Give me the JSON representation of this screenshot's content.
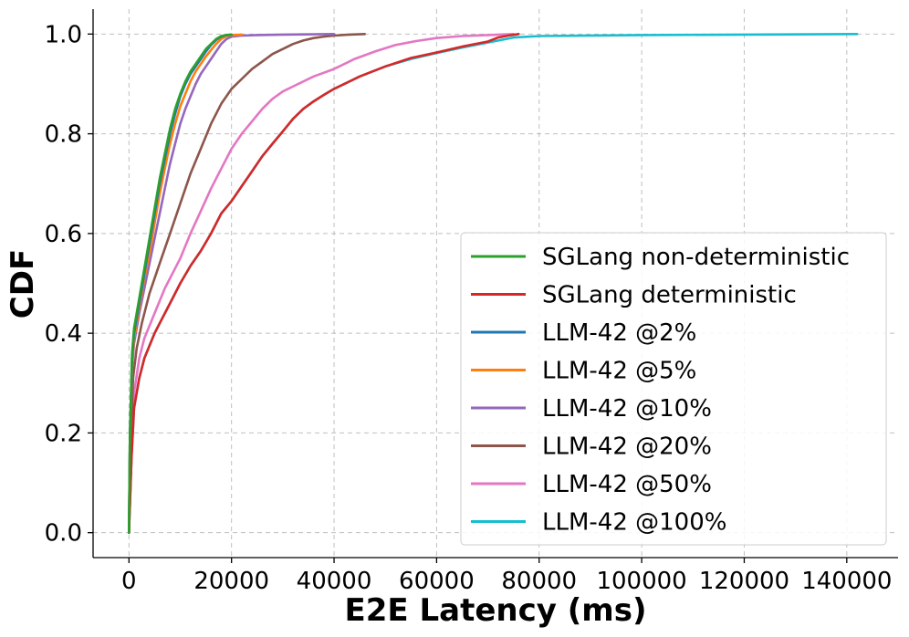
{
  "chart_data": {
    "type": "line",
    "title": "",
    "xlabel": "E2E Latency (ms)",
    "ylabel": "CDF",
    "xlim": [
      -7000,
      150000
    ],
    "ylim": [
      -0.05,
      1.05
    ],
    "xticks": [
      0,
      20000,
      40000,
      60000,
      80000,
      100000,
      120000,
      140000
    ],
    "xtick_labels": [
      "0",
      "20000",
      "40000",
      "60000",
      "80000",
      "100000",
      "120000",
      "140000"
    ],
    "yticks": [
      0.0,
      0.2,
      0.4,
      0.6,
      0.8,
      1.0
    ],
    "ytick_labels": [
      "0.0",
      "0.2",
      "0.4",
      "0.6",
      "0.8",
      "1.0"
    ],
    "grid": true,
    "legend_position": "lower-right",
    "series": [
      {
        "name": "SGLang non-deterministic",
        "color": "#2ca02c",
        "x": [
          0,
          200,
          600,
          1000,
          2000,
          3000,
          4000,
          5000,
          6000,
          7000,
          8000,
          9000,
          10000,
          11000,
          12000,
          13000,
          14000,
          15000,
          16000,
          17000,
          18000,
          19000,
          20000
        ],
        "y": [
          0,
          0.2,
          0.36,
          0.41,
          0.47,
          0.53,
          0.59,
          0.65,
          0.71,
          0.76,
          0.81,
          0.85,
          0.88,
          0.905,
          0.925,
          0.94,
          0.955,
          0.97,
          0.98,
          0.99,
          0.996,
          0.998,
          0.999
        ]
      },
      {
        "name": "SGLang deterministic",
        "color": "#d62728",
        "x": [
          0,
          500,
          1000,
          2000,
          3000,
          4000,
          5000,
          6000,
          8000,
          10000,
          12000,
          14000,
          16000,
          18000,
          20000,
          22000,
          24000,
          26000,
          28000,
          30000,
          32000,
          34000,
          36000,
          38000,
          40000,
          45000,
          50000,
          55000,
          60000,
          65000,
          70000,
          72000,
          74000,
          76000
        ],
        "y": [
          0,
          0.15,
          0.25,
          0.31,
          0.35,
          0.375,
          0.4,
          0.42,
          0.46,
          0.5,
          0.535,
          0.565,
          0.6,
          0.64,
          0.665,
          0.695,
          0.725,
          0.755,
          0.78,
          0.805,
          0.83,
          0.85,
          0.865,
          0.878,
          0.89,
          0.915,
          0.935,
          0.952,
          0.963,
          0.975,
          0.985,
          0.993,
          0.997,
          1.0
        ]
      },
      {
        "name": "LLM-42 @2%",
        "color": "#1f77b4",
        "x": [
          0,
          200,
          600,
          1000,
          2000,
          3000,
          4000,
          5000,
          6000,
          7000,
          8000,
          9000,
          10000,
          11000,
          12000,
          13000,
          14000,
          15000,
          16000,
          17000,
          18000,
          19000,
          20000
        ],
        "y": [
          0,
          0.2,
          0.35,
          0.4,
          0.46,
          0.52,
          0.58,
          0.64,
          0.7,
          0.75,
          0.8,
          0.84,
          0.875,
          0.9,
          0.92,
          0.935,
          0.95,
          0.965,
          0.978,
          0.988,
          0.995,
          0.998,
          0.999
        ]
      },
      {
        "name": "LLM-42 @5%",
        "color": "#ff7f0e",
        "x": [
          0,
          200,
          600,
          1000,
          2000,
          3000,
          4000,
          5000,
          6000,
          7000,
          8000,
          9000,
          10000,
          11000,
          12000,
          13000,
          14000,
          15000,
          16000,
          17000,
          18000,
          19000,
          20000,
          22000
        ],
        "y": [
          0,
          0.19,
          0.34,
          0.39,
          0.45,
          0.51,
          0.56,
          0.62,
          0.68,
          0.73,
          0.78,
          0.82,
          0.855,
          0.88,
          0.905,
          0.925,
          0.94,
          0.955,
          0.968,
          0.98,
          0.99,
          0.996,
          0.998,
          0.999
        ]
      },
      {
        "name": "LLM-42 @10%",
        "color": "#9467bd",
        "x": [
          0,
          200,
          600,
          1000,
          2000,
          3000,
          4000,
          5000,
          6000,
          7000,
          8000,
          9000,
          10000,
          11000,
          12000,
          13000,
          14000,
          15000,
          16000,
          17000,
          18000,
          19000,
          20000,
          22000,
          25000,
          30000,
          40000
        ],
        "y": [
          0,
          0.18,
          0.33,
          0.38,
          0.44,
          0.49,
          0.54,
          0.59,
          0.64,
          0.69,
          0.74,
          0.78,
          0.82,
          0.85,
          0.875,
          0.9,
          0.92,
          0.935,
          0.95,
          0.965,
          0.98,
          0.99,
          0.995,
          0.997,
          0.998,
          0.999,
          1.0
        ]
      },
      {
        "name": "LLM-42 @20%",
        "color": "#8c564b",
        "x": [
          0,
          300,
          800,
          1500,
          2500,
          4000,
          6000,
          8000,
          10000,
          12000,
          14000,
          16000,
          18000,
          20000,
          22000,
          24000,
          26000,
          28000,
          30000,
          32000,
          34000,
          36000,
          38000,
          40000,
          43000,
          46000
        ],
        "y": [
          0,
          0.17,
          0.31,
          0.37,
          0.42,
          0.48,
          0.54,
          0.6,
          0.66,
          0.72,
          0.77,
          0.82,
          0.86,
          0.89,
          0.91,
          0.93,
          0.945,
          0.96,
          0.97,
          0.98,
          0.987,
          0.992,
          0.995,
          0.997,
          0.999,
          1.0
        ]
      },
      {
        "name": "LLM-42 @50%",
        "color": "#e377c2",
        "x": [
          0,
          500,
          1000,
          2000,
          3000,
          5000,
          7000,
          10000,
          12000,
          14000,
          16000,
          18000,
          20000,
          22000,
          24000,
          26000,
          28000,
          30000,
          33000,
          36000,
          40000,
          44000,
          48000,
          52000,
          56000,
          60000,
          65000,
          70000,
          75000
        ],
        "y": [
          0,
          0.16,
          0.28,
          0.35,
          0.39,
          0.44,
          0.49,
          0.55,
          0.6,
          0.645,
          0.69,
          0.73,
          0.77,
          0.8,
          0.825,
          0.85,
          0.87,
          0.885,
          0.9,
          0.915,
          0.93,
          0.95,
          0.965,
          0.978,
          0.986,
          0.992,
          0.996,
          0.998,
          1.0
        ]
      },
      {
        "name": "LLM-42 @100%",
        "color": "#17becf",
        "x": [
          0,
          500,
          1000,
          2000,
          3000,
          4000,
          5000,
          6000,
          8000,
          10000,
          12000,
          14000,
          16000,
          18000,
          20000,
          22000,
          24000,
          26000,
          28000,
          30000,
          32000,
          34000,
          36000,
          38000,
          40000,
          45000,
          50000,
          55000,
          60000,
          65000,
          70000,
          75000,
          80000,
          100000,
          120000,
          142000
        ],
        "y": [
          0,
          0.15,
          0.25,
          0.31,
          0.35,
          0.375,
          0.4,
          0.42,
          0.46,
          0.5,
          0.535,
          0.565,
          0.6,
          0.64,
          0.665,
          0.695,
          0.725,
          0.755,
          0.78,
          0.805,
          0.83,
          0.85,
          0.865,
          0.878,
          0.89,
          0.915,
          0.935,
          0.95,
          0.962,
          0.973,
          0.983,
          0.993,
          0.996,
          0.998,
          0.999,
          1.0
        ]
      }
    ]
  }
}
